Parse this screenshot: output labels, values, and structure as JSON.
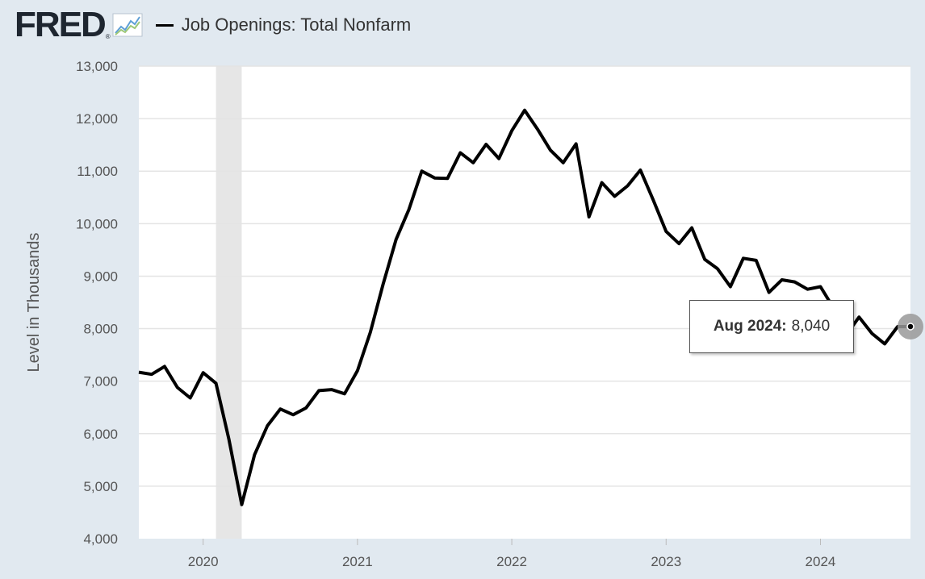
{
  "header": {
    "logo": "FRED",
    "logo_mark": "®",
    "logo_icon": "line-chart-icon",
    "legend_label": "Job Openings: Total Nonfarm"
  },
  "tooltip": {
    "date": "Aug 2024:",
    "value": "8,040"
  },
  "colors": {
    "background": "#e1e9f0",
    "plot": "#ffffff",
    "line": "#000000",
    "recession": "#e6e6e6"
  },
  "chart_data": {
    "type": "line",
    "title": "",
    "xlabel": "",
    "ylabel": "Level in Thousands",
    "ylim": [
      4000,
      13000
    ],
    "yticks": [
      4000,
      5000,
      6000,
      7000,
      8000,
      9000,
      10000,
      11000,
      12000,
      13000
    ],
    "ytick_labels": [
      "4,000",
      "5,000",
      "6,000",
      "7,000",
      "8,000",
      "9,000",
      "10,000",
      "11,000",
      "12,000",
      "13,000"
    ],
    "xticks": [
      "2020-01",
      "2021-01",
      "2022-01",
      "2023-01",
      "2024-01"
    ],
    "xtick_labels": [
      "2020",
      "2021",
      "2022",
      "2023",
      "2024"
    ],
    "x_range": [
      "2019-08",
      "2024-08"
    ],
    "grid": "horizontal",
    "shaded_regions": [
      {
        "start": "2020-02",
        "end": "2020-04",
        "label": "recession"
      }
    ],
    "series": [
      {
        "name": "Job Openings: Total Nonfarm",
        "x": [
          "2019-08",
          "2019-09",
          "2019-10",
          "2019-11",
          "2019-12",
          "2020-01",
          "2020-02",
          "2020-03",
          "2020-04",
          "2020-05",
          "2020-06",
          "2020-07",
          "2020-08",
          "2020-09",
          "2020-10",
          "2020-11",
          "2020-12",
          "2021-01",
          "2021-02",
          "2021-03",
          "2021-04",
          "2021-05",
          "2021-06",
          "2021-07",
          "2021-08",
          "2021-09",
          "2021-10",
          "2021-11",
          "2021-12",
          "2022-01",
          "2022-02",
          "2022-03",
          "2022-04",
          "2022-05",
          "2022-06",
          "2022-07",
          "2022-08",
          "2022-09",
          "2022-10",
          "2022-11",
          "2022-12",
          "2023-01",
          "2023-02",
          "2023-03",
          "2023-04",
          "2023-05",
          "2023-06",
          "2023-07",
          "2023-08",
          "2023-09",
          "2023-10",
          "2023-11",
          "2023-12",
          "2024-01",
          "2024-02",
          "2024-03",
          "2024-04",
          "2024-05",
          "2024-06",
          "2024-07",
          "2024-08"
        ],
        "values": [
          7170,
          7130,
          7280,
          6880,
          6680,
          7160,
          6960,
          5900,
          4650,
          5600,
          6150,
          6470,
          6360,
          6490,
          6820,
          6840,
          6760,
          7200,
          7930,
          8850,
          9700,
          10270,
          11000,
          10870,
          10860,
          11350,
          11160,
          11510,
          11240,
          11770,
          12160,
          11800,
          11400,
          11160,
          11520,
          10130,
          10780,
          10520,
          10720,
          11020,
          10450,
          9850,
          9620,
          9920,
          9320,
          9140,
          8800,
          9340,
          9300,
          8690,
          8930,
          8890,
          8750,
          8800,
          8400,
          7880,
          8220,
          7910,
          7710,
          8040,
          8040
        ]
      }
    ]
  }
}
